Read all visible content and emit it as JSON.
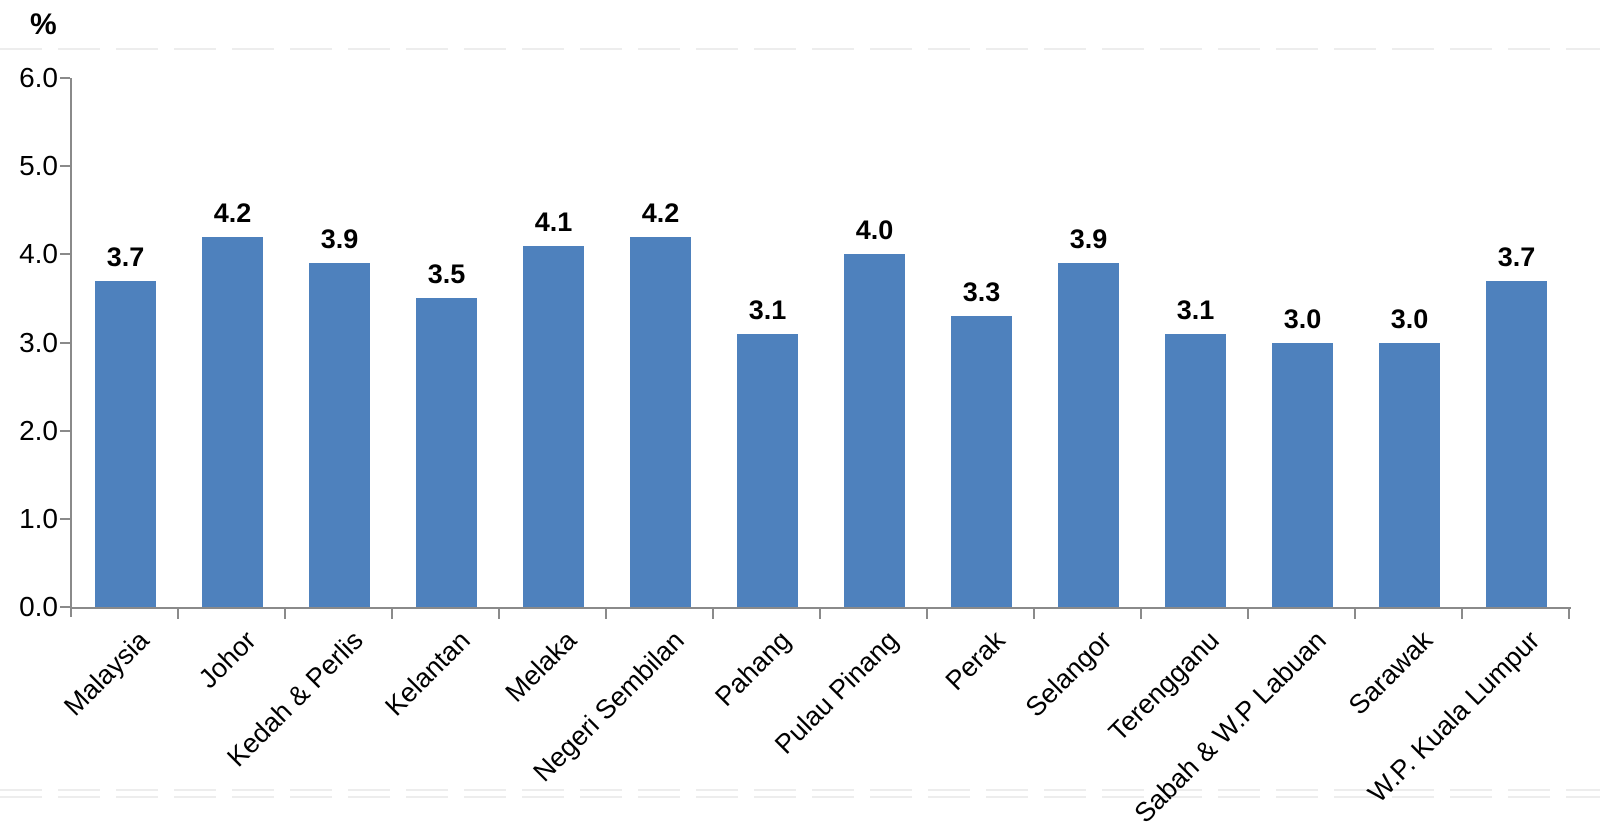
{
  "chart_data": {
    "type": "bar",
    "title": "",
    "unit_label": "%",
    "categories": [
      "Malaysia",
      "Johor",
      "Kedah & Perlis",
      "Kelantan",
      "Melaka",
      "Negeri Sembilan",
      "Pahang",
      "Pulau Pinang",
      "Perak",
      "Selangor",
      "Terengganu",
      "Sabah & W.P Labuan",
      "Sarawak",
      "W.P. Kuala Lumpur"
    ],
    "values": [
      3.7,
      4.2,
      3.9,
      3.5,
      4.1,
      4.2,
      3.1,
      4.0,
      3.3,
      3.9,
      3.1,
      3.0,
      3.0,
      3.7
    ],
    "value_labels": [
      "3.7",
      "4.2",
      "3.9",
      "3.5",
      "4.1",
      "4.2",
      "3.1",
      "4.0",
      "3.3",
      "3.9",
      "3.1",
      "3.0",
      "3.0",
      "3.7"
    ],
    "xlabel": "",
    "ylabel": "%",
    "ylim": [
      0.0,
      6.0
    ],
    "ytick_labels": [
      "0.0",
      "1.0",
      "2.0",
      "3.0",
      "4.0",
      "5.0",
      "6.0"
    ],
    "grid": false,
    "legend_position": "none",
    "colors": {
      "bar": "#4E81BD",
      "axis": "#8A8A8A",
      "text": "#000000",
      "faint_line": "#EDEDED",
      "background": "#FFFFFF"
    }
  }
}
